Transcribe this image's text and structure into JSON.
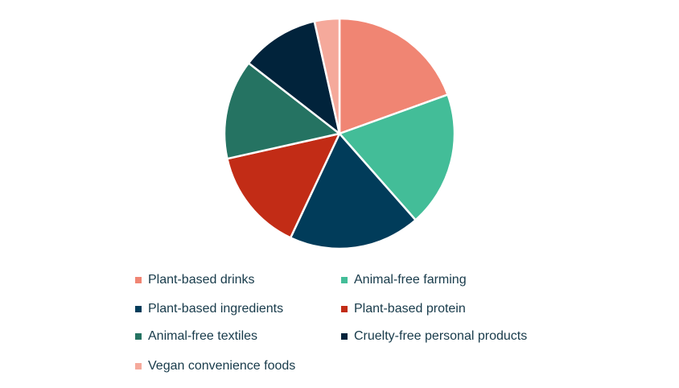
{
  "chart_data": {
    "type": "pie",
    "categories": [
      "Plant-based drinks",
      "Animal-free farming",
      "Plant-based ingredients",
      "Plant-based protein",
      "Animal-free textiles",
      "Cruelty-free personal products",
      "Vegan convenience foods"
    ],
    "values": [
      19.5,
      19.0,
      18.5,
      14.5,
      14.0,
      11.0,
      3.5
    ],
    "colors": [
      "#f08573",
      "#43bd98",
      "#013c5a",
      "#c22c16",
      "#257362",
      "#01233b",
      "#f5a99b"
    ],
    "legend": "bottom"
  }
}
